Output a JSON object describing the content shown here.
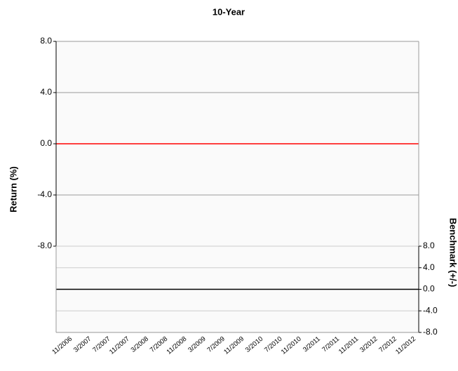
{
  "chart_data": [
    {
      "type": "line",
      "title": "10-Year",
      "y_label": "Return (%)",
      "ylim": [
        -8,
        8
      ],
      "yticks": [
        {
          "value": 8,
          "label": "8.0"
        },
        {
          "value": 4,
          "label": "4.0"
        },
        {
          "value": 0,
          "label": "0.0"
        },
        {
          "value": -4,
          "label": "-4.0"
        },
        {
          "value": -8,
          "label": "-8.0"
        }
      ],
      "zero_line_color": "#ff0000",
      "grid": true
    },
    {
      "type": "line",
      "y2_label": "Benchmark (+/-)",
      "categories": [
        "11/2006",
        "3/2007",
        "7/2007",
        "11/2007",
        "3/2008",
        "7/2008",
        "11/2008",
        "3/2009",
        "7/2009",
        "11/2009",
        "3/2010",
        "7/2010",
        "11/2010",
        "3/2011",
        "7/2011",
        "11/2011",
        "3/2012",
        "7/2012",
        "11/2012"
      ],
      "y2lim": [
        -8,
        8
      ],
      "y2ticks": [
        {
          "value": 8,
          "label": "8.0"
        },
        {
          "value": 4,
          "label": "4.0"
        },
        {
          "value": 0,
          "label": "0.0"
        },
        {
          "value": -4,
          "label": "-4.0"
        },
        {
          "value": -8,
          "label": "-8.0"
        }
      ],
      "zero_line_color": "#000000",
      "grid": true
    }
  ]
}
